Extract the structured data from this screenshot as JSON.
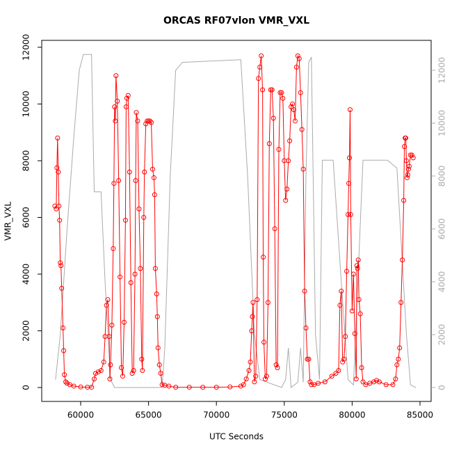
{
  "chart_data": {
    "type": "line",
    "title": "ORCAS RF07vlon VMR_VXL",
    "xlabel": "UTC Seconds",
    "ylabel": "VMR_VXL",
    "xlim": [
      57131,
      85820
    ],
    "xticks": [
      60000,
      65000,
      70000,
      75000,
      80000,
      85000
    ],
    "ylim": [
      -491,
      12245
    ],
    "yticks": [
      0,
      2000,
      4000,
      6000,
      8000,
      10000,
      12000
    ],
    "y2lim": [
      -526,
      13132
    ],
    "y2ticks": [
      0,
      2000,
      4000,
      6000,
      8000,
      10000,
      12000
    ],
    "series": [
      {
        "color": "#aaaaaa",
        "axis": "y2",
        "markers": false,
        "x": [
          58150,
          58500,
          59000,
          59500,
          59900,
          60200,
          60800,
          61000,
          61500,
          61800,
          62200,
          62500,
          66000,
          66200,
          66600,
          67000,
          67500,
          71800,
          72300,
          72800,
          73200,
          74800,
          75100,
          75300,
          75500,
          76000,
          76200,
          76400,
          76600,
          76800,
          77000,
          77300,
          77600,
          77800,
          78600,
          79200,
          79700,
          80100,
          80800,
          82600,
          83300,
          84000,
          84300,
          84700
        ],
        "values": [
          300,
          2000,
          6000,
          9500,
          12000,
          12600,
          12600,
          7400,
          7400,
          4000,
          300,
          0,
          0,
          1500,
          8000,
          12000,
          12300,
          12400,
          8000,
          2000,
          300,
          0,
          300,
          1500,
          0,
          200,
          1500,
          200,
          8000,
          12300,
          12500,
          2000,
          300,
          8600,
          8600,
          4000,
          300,
          100,
          8600,
          8600,
          8300,
          2000,
          100,
          0
        ]
      },
      {
        "color": "#ff0000",
        "markers": true,
        "x": [
          58100,
          58200,
          58250,
          58300,
          58350,
          58400,
          58450,
          58500,
          58550,
          58600,
          58700,
          58750,
          58800,
          58900,
          59000,
          59200,
          59500,
          60000,
          60500,
          60800,
          61000,
          61100,
          61300,
          61500,
          61700,
          61800,
          61900,
          62000,
          62100,
          62150,
          62200,
          62300,
          62400,
          62450,
          62500,
          62550,
          62600,
          62700,
          62800,
          62900,
          63000,
          63100,
          63200,
          63300,
          63350,
          63400,
          63500,
          63600,
          63700,
          63800,
          63900,
          64000,
          64050,
          64100,
          64200,
          64300,
          64400,
          64500,
          64550,
          64650,
          64700,
          64800,
          64900,
          65000,
          65100,
          65200,
          65300,
          65400,
          65450,
          65500,
          65600,
          65650,
          65700,
          65800,
          65900,
          66000,
          66200,
          66500,
          67000,
          68000,
          69000,
          70000,
          71000,
          71800,
          72000,
          72200,
          72400,
          72500,
          72600,
          72650,
          72700,
          72800,
          72900,
          73000,
          73100,
          73200,
          73300,
          73400,
          73450,
          73500,
          73600,
          73700,
          73800,
          73900,
          74000,
          74100,
          74200,
          74300,
          74400,
          74500,
          74600,
          74700,
          74800,
          74900,
          75000,
          75100,
          75200,
          75300,
          75400,
          75500,
          75600,
          75700,
          75800,
          75900,
          76000,
          76100,
          76200,
          76300,
          76400,
          76500,
          76600,
          76700,
          76800,
          76900,
          77000,
          77200,
          77500,
          78000,
          78500,
          78800,
          79000,
          79100,
          79200,
          79300,
          79400,
          79500,
          79600,
          79700,
          79750,
          79800,
          79850,
          79900,
          80000,
          80100,
          80200,
          80300,
          80350,
          80400,
          80450,
          80500,
          80600,
          80700,
          80800,
          81000,
          81300,
          81600,
          81800,
          82000,
          82500,
          83000,
          83200,
          83300,
          83400,
          83500,
          83600,
          83700,
          83800,
          83850,
          83900,
          83950,
          84000,
          84050,
          84100,
          84150,
          84200,
          84300,
          84400,
          84500
        ],
        "values": [
          6400,
          6300,
          7750,
          8800,
          7600,
          6400,
          5900,
          4400,
          4300,
          3500,
          2100,
          1300,
          450,
          200,
          150,
          100,
          50,
          20,
          10,
          10,
          300,
          500,
          550,
          600,
          900,
          1800,
          2900,
          3100,
          1800,
          300,
          800,
          2200,
          4900,
          7200,
          9900,
          9400,
          11000,
          10100,
          7300,
          3900,
          700,
          400,
          2300,
          5900,
          9900,
          10200,
          10300,
          7600,
          3700,
          500,
          600,
          4000,
          7300,
          9700,
          9400,
          6300,
          4200,
          1000,
          600,
          6000,
          7600,
          9300,
          9400,
          9400,
          9400,
          9350,
          7700,
          7400,
          6800,
          4200,
          3300,
          2500,
          1400,
          800,
          500,
          100,
          80,
          50,
          10,
          10,
          10,
          10,
          20,
          50,
          100,
          300,
          600,
          900,
          2000,
          2500,
          3000,
          200,
          400,
          3100,
          10900,
          11300,
          11700,
          10500,
          4600,
          1600,
          300,
          400,
          3000,
          8600,
          10500,
          10500,
          9500,
          5600,
          800,
          700,
          8400,
          10400,
          10400,
          10200,
          8000,
          6600,
          7000,
          8000,
          8700,
          9900,
          10000,
          9800,
          9400,
          11300,
          11700,
          11600,
          10400,
          9100,
          7700,
          3400,
          2100,
          1000,
          1000,
          200,
          100,
          100,
          150,
          200,
          400,
          500,
          600,
          2900,
          3400,
          900,
          1000,
          1800,
          4100,
          6100,
          7200,
          8100,
          9800,
          6100,
          2700,
          4000,
          1900,
          300,
          4300,
          4200,
          4500,
          3100,
          2600,
          700,
          200,
          100,
          150,
          200,
          250,
          200,
          100,
          100,
          300,
          800,
          1000,
          1400,
          3000,
          4500,
          6600,
          8500,
          8800,
          8800,
          8000,
          7400,
          7500,
          7700,
          7800,
          8200,
          8200,
          8100
        ]
      }
    ]
  }
}
